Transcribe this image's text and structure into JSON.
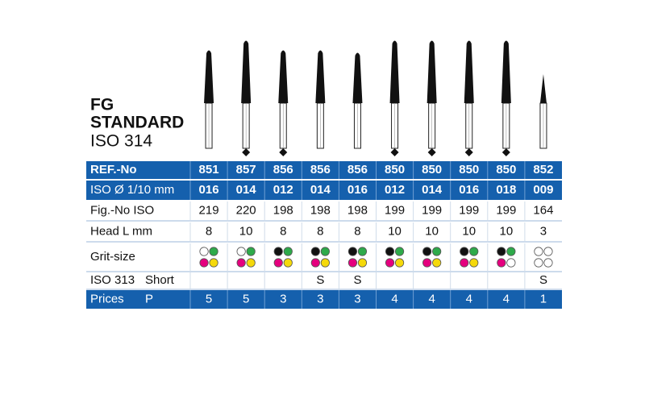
{
  "title": {
    "line1": "FG",
    "line2": "STANDARD",
    "line3": "ISO 314"
  },
  "table": {
    "marked": [
      false,
      true,
      true,
      false,
      false,
      true,
      true,
      true,
      true,
      false
    ],
    "rows": [
      {
        "label": "REF.-No",
        "style": "blue",
        "cells": [
          "851",
          "857",
          "856",
          "856",
          "856",
          "850",
          "850",
          "850",
          "850",
          "852"
        ]
      },
      {
        "label": "ISO Ø 1/10 mm",
        "style": "blue",
        "cells": [
          "016",
          "014",
          "012",
          "014",
          "016",
          "012",
          "014",
          "016",
          "018",
          "009"
        ]
      },
      {
        "label": "Fig.-No ISO",
        "style": "white",
        "cells": [
          219,
          220,
          198,
          198,
          198,
          199,
          199,
          199,
          199,
          164
        ]
      },
      {
        "label": "Head L mm",
        "style": "white",
        "cells": [
          8,
          10,
          8,
          8,
          8,
          10,
          10,
          10,
          10,
          3
        ]
      },
      {
        "label": "Grit-size",
        "style": "grit",
        "cells": [
          [
            "#ffffff",
            "#2eaa4a",
            "#e5007e",
            "#f5d90a"
          ],
          [
            "#ffffff",
            "#2eaa4a",
            "#e5007e",
            "#f5d90a"
          ],
          [
            "#111111",
            "#2eaa4a",
            "#e5007e",
            "#f5d90a"
          ],
          [
            "#111111",
            "#2eaa4a",
            "#e5007e",
            "#f5d90a"
          ],
          [
            "#111111",
            "#2eaa4a",
            "#e5007e",
            "#f5d90a"
          ],
          [
            "#111111",
            "#2eaa4a",
            "#e5007e",
            "#f5d90a"
          ],
          [
            "#111111",
            "#2eaa4a",
            "#e5007e",
            "#f5d90a"
          ],
          [
            "#111111",
            "#2eaa4a",
            "#e5007e",
            "#f5d90a"
          ],
          [
            "#111111",
            "#2eaa4a",
            "#e5007e",
            "#ffffff"
          ],
          [
            "#ffffff",
            "#ffffff",
            "#ffffff",
            "#ffffff"
          ]
        ]
      },
      {
        "label": "ISO 313",
        "label2": "Short",
        "style": "white",
        "cells": [
          null,
          null,
          null,
          "S",
          "S",
          null,
          null,
          null,
          null,
          "S"
        ]
      },
      {
        "label": "Prices",
        "label2": "P",
        "style": "blue",
        "cells": [
          5,
          5,
          3,
          3,
          3,
          4,
          4,
          4,
          4,
          1
        ]
      }
    ]
  }
}
